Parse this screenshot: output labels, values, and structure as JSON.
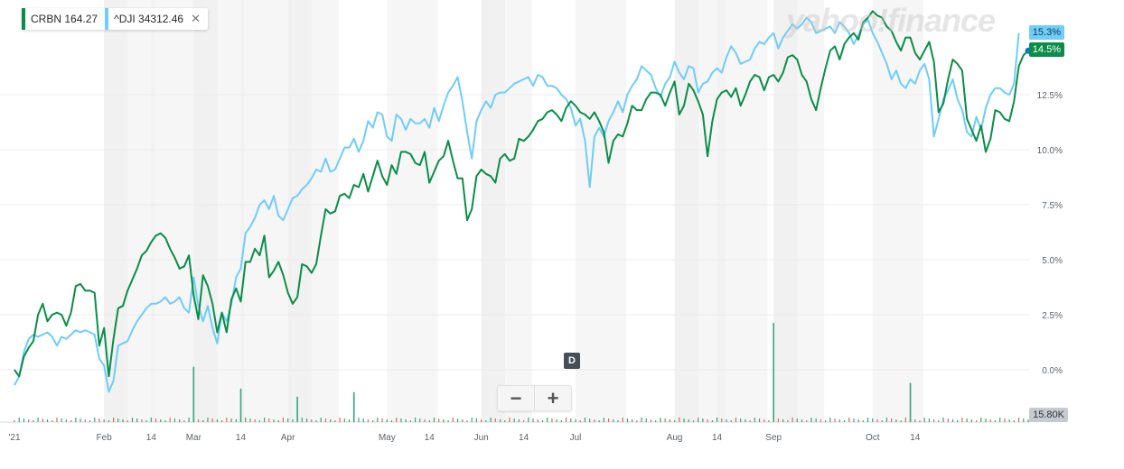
{
  "watermark": "yahoo!finance",
  "legend": [
    {
      "symbol": "CRBN",
      "price": "164.27",
      "color": "#0b8d4a",
      "closable": false
    },
    {
      "symbol": "^DJI",
      "price": "34312.46",
      "color": "#6fcdf7",
      "closable": true
    }
  ],
  "close_glyph": "✕",
  "zoom": {
    "minus": "−",
    "plus": "+"
  },
  "d_marker": "D",
  "last_tags": {
    "dji": "15.3%",
    "crbn": "14.5%",
    "volume": "15.80K"
  },
  "chart_data": {
    "type": "line",
    "ylabel": "",
    "y_unit": "%",
    "ylim": [
      -0.5,
      16.5
    ],
    "yticks": [
      "0.0%",
      "2.5%",
      "5.0%",
      "7.5%",
      "10.0%",
      "12.5%"
    ],
    "ytick_values": [
      0,
      2.5,
      5,
      7.5,
      10,
      12.5
    ],
    "xticks": [
      {
        "label": "'21",
        "index": 0
      },
      {
        "label": "Feb",
        "index": 19
      },
      {
        "label": "14",
        "index": 29
      },
      {
        "label": "Mar",
        "index": 38
      },
      {
        "label": "14",
        "index": 48
      },
      {
        "label": "Apr",
        "index": 58
      },
      {
        "label": "May",
        "index": 79
      },
      {
        "label": "14",
        "index": 88
      },
      {
        "label": "Jun",
        "index": 99
      },
      {
        "label": "14",
        "index": 108
      },
      {
        "label": "Jul",
        "index": 119
      },
      {
        "label": "Aug",
        "index": 140
      },
      {
        "label": "14",
        "index": 149
      },
      {
        "label": "Sep",
        "index": 161
      },
      {
        "label": "Oct",
        "index": 182
      },
      {
        "label": "14",
        "index": 191
      }
    ],
    "band_starts": [
      19,
      29,
      38,
      48,
      58,
      79,
      99,
      119,
      140,
      149,
      161,
      182
    ],
    "grid": true,
    "series": [
      {
        "name": "CRBN",
        "color": "#0b8d4a",
        "values": [
          0,
          -0.3,
          0.6,
          1,
          1.3,
          2.5,
          3,
          2.2,
          2.5,
          2.6,
          2.5,
          2,
          2.6,
          3.8,
          3.9,
          3.6,
          3.6,
          3.5,
          1.1,
          1.9,
          -0.3,
          1.4,
          2.8,
          2.9,
          3.6,
          4.1,
          4.6,
          5.2,
          5.4,
          5.8,
          6.1,
          6.2,
          6.0,
          5.5,
          5.1,
          4.6,
          4.7,
          5.2,
          3.4,
          2.3,
          4.3,
          3.8,
          3.0,
          1.7,
          2.6,
          1.7,
          3.2,
          3.7,
          3.1,
          4.9,
          4.9,
          5.5,
          5.2,
          6.1,
          4.2,
          4.5,
          4.9,
          4.3,
          3.5,
          3.0,
          3.3,
          4.8,
          4.7,
          4.4,
          4.8,
          6.1,
          7.3,
          7.1,
          7.2,
          7.9,
          8.0,
          7.8,
          8.4,
          8.3,
          8.9,
          8.1,
          8.8,
          9.5,
          8.8,
          8.4,
          9.3,
          8.9,
          9.9,
          9.9,
          9.8,
          9.4,
          9.3,
          9.9,
          8.5,
          9.0,
          9.5,
          9.7,
          10.4,
          9.5,
          8.7,
          8.7,
          6.8,
          7.3,
          8.8,
          9.1,
          8.9,
          8.8,
          8.5,
          9.6,
          9.8,
          9.5,
          9.6,
          10.5,
          10.4,
          10.6,
          10.9,
          11.3,
          11.4,
          11.7,
          11.8,
          11.6,
          11.3,
          11.9,
          12.2,
          12.0,
          11.7,
          11.6,
          11.4,
          11.7,
          11.3,
          10.8,
          9.4,
          10.4,
          10.7,
          10.6,
          11.2,
          12.0,
          11.8,
          11.8,
          12.3,
          12.6,
          12.6,
          12.5,
          12.0,
          12.6,
          13.1,
          11.6,
          12.0,
          13.0,
          12.7,
          12.2,
          11.6,
          9.7,
          11.3,
          12.3,
          12.6,
          12.7,
          12.4,
          12.8,
          12.0,
          12.5,
          13.1,
          13.4,
          13.3,
          12.7,
          13.3,
          13.4,
          13.1,
          13.5,
          14.2,
          14.3,
          14.1,
          13.4,
          13.1,
          12.3,
          11.8,
          12.8,
          13.7,
          14.5,
          14.7,
          14.1,
          14.8,
          15.1,
          15.3,
          15.0,
          15.8,
          16.0,
          16.3,
          16.1,
          16.0,
          15.6,
          15.4,
          14.9,
          14.5,
          15.1,
          15.1,
          14.4,
          14.1,
          14.5,
          14.9,
          14.0,
          11.7,
          12.1,
          13.2,
          14.1,
          13.9,
          13.6,
          11.4,
          10.9,
          10.4,
          11.1,
          9.9,
          10.5,
          11.8,
          11.7,
          11.4,
          11.3,
          12.2,
          13.8,
          14.3,
          14.5
        ]
      },
      {
        "name": "^DJI",
        "color": "#6fcdf7",
        "values": [
          -0.7,
          -0.3,
          0.8,
          1.4,
          1.6,
          1.5,
          1.6,
          1.7,
          1.5,
          1.1,
          1.5,
          1.4,
          1.6,
          1.8,
          1.7,
          1.8,
          1.7,
          1.6,
          0.5,
          0.2,
          -1.0,
          -0.5,
          1.1,
          1.2,
          1.3,
          1.8,
          2.2,
          2.5,
          2.8,
          3.0,
          3.0,
          3.1,
          3.3,
          3.0,
          3.1,
          3.3,
          2.8,
          2.6,
          4.2,
          2.9,
          2.2,
          2.9,
          1.9,
          1.2,
          2.6,
          2.2,
          3.0,
          4.2,
          4.6,
          6.2,
          6.5,
          6.9,
          7.5,
          7.7,
          7.3,
          7.9,
          7.0,
          6.8,
          7.3,
          7.8,
          7.9,
          8.2,
          8.4,
          8.7,
          9.1,
          9.0,
          9.6,
          9.0,
          9.1,
          9.6,
          10.1,
          10.1,
          10.5,
          9.9,
          10.4,
          11.3,
          11.0,
          11.7,
          11.6,
          10.6,
          10.4,
          11.6,
          11.4,
          10.9,
          11.4,
          11.2,
          11.2,
          11.4,
          11.0,
          11.9,
          11.3,
          12.0,
          12.6,
          12.9,
          13.3,
          12.2,
          10.8,
          9.6,
          11.3,
          11.8,
          12.2,
          11.9,
          12.5,
          12.6,
          12.6,
          12.8,
          13.0,
          13.1,
          13.2,
          13.3,
          12.9,
          13.4,
          13.3,
          12.9,
          12.9,
          12.8,
          12.5,
          12.3,
          11.9,
          11.1,
          11.4,
          10.4,
          8.3,
          10.6,
          11.0,
          10.6,
          11.3,
          11.7,
          12.2,
          11.7,
          12.5,
          12.9,
          13.2,
          13.8,
          13.6,
          13.4,
          12.8,
          12.4,
          13.0,
          13.3,
          14.0,
          13.5,
          13.2,
          13.8,
          13.7,
          12.6,
          13.0,
          13.1,
          13.5,
          13.7,
          13.5,
          14.2,
          14.7,
          14.4,
          13.9,
          14.0,
          14.1,
          14.6,
          14.9,
          14.8,
          15.1,
          15.3,
          14.6,
          15.1,
          15.4,
          15.7,
          15.5,
          15.7,
          16.0,
          15.8,
          15.3,
          15.4,
          15.5,
          15.6,
          15.3,
          15.8,
          15.6,
          15.3,
          14.8,
          15.2,
          15.7,
          15.9,
          15.3,
          14.9,
          14.4,
          13.9,
          13.2,
          13.6,
          13.0,
          12.8,
          13.2,
          13.0,
          13.6,
          13.9,
          13.2,
          10.6,
          11.4,
          12.3,
          12.7,
          13.2,
          12.3,
          11.8,
          10.8,
          10.6,
          11.5,
          10.9,
          11.9,
          12.5,
          12.8,
          12.8,
          12.6,
          12.5,
          13.0,
          15.3
        ]
      }
    ],
    "volume": {
      "max_label": "15.80K",
      "spikes": [
        {
          "index": 38,
          "value": 4.8
        },
        {
          "index": 48,
          "value": 2.9
        },
        {
          "index": 60,
          "value": 2.2
        },
        {
          "index": 72,
          "value": 2.6
        },
        {
          "index": 161,
          "value": 8.6
        },
        {
          "index": 190,
          "value": 3.4
        }
      ]
    }
  }
}
